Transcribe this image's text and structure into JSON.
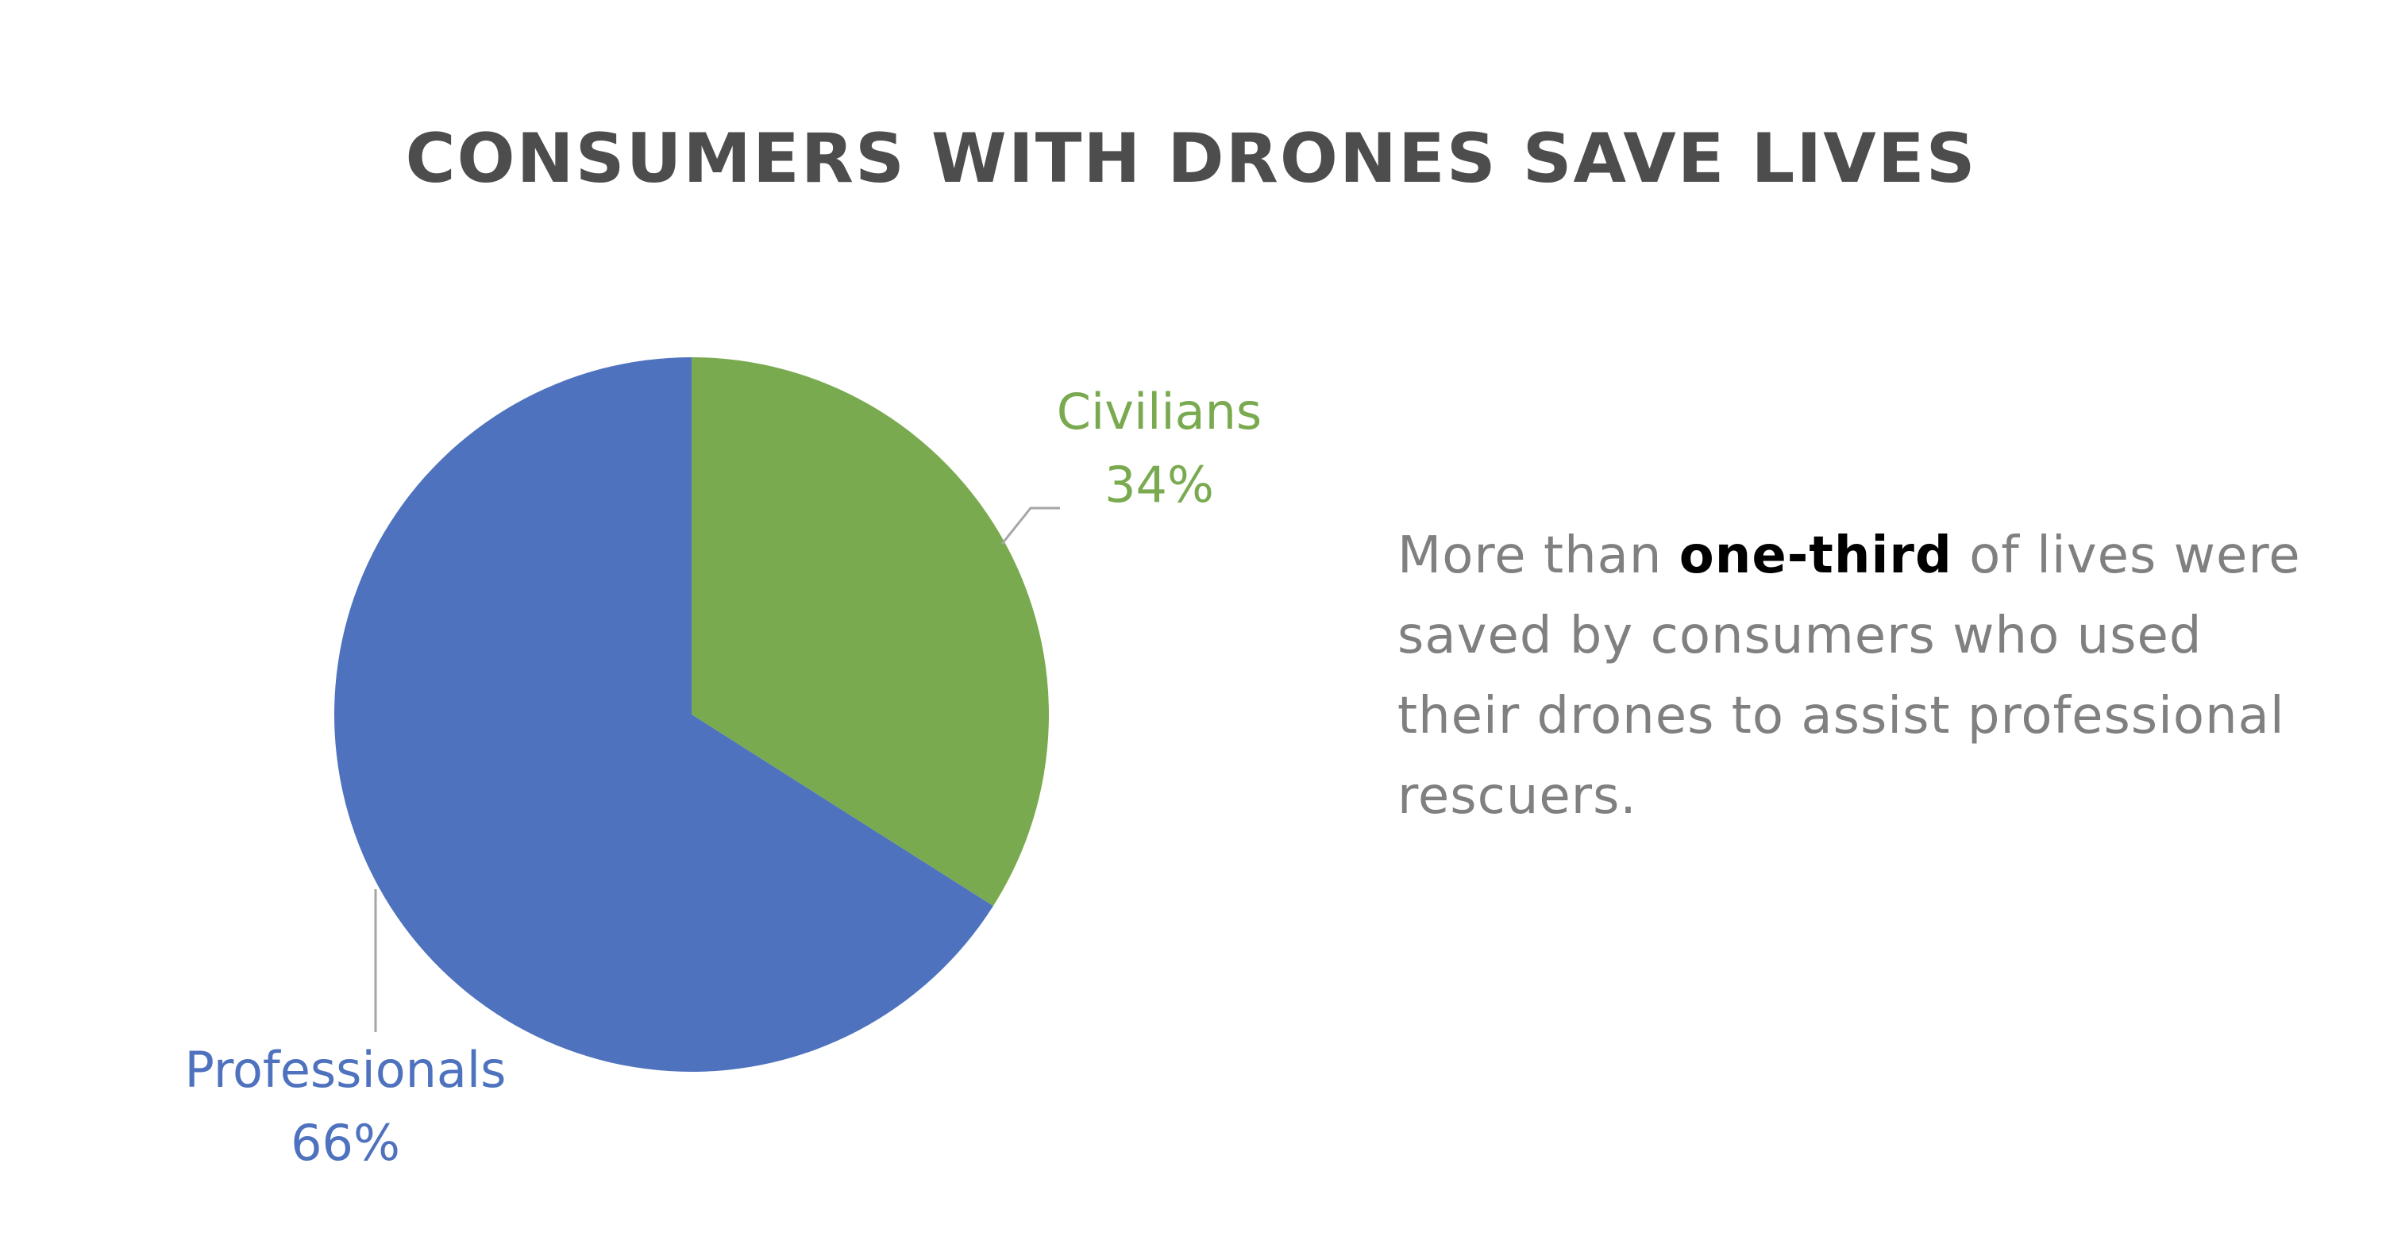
{
  "chart_data": {
    "type": "pie",
    "title": "CONSUMERS WITH DRONES SAVE LIVES",
    "slices": [
      {
        "label": "Civilians",
        "value": 34,
        "value_label": "34%",
        "color": "#7aaa50"
      },
      {
        "label": "Professionals",
        "value": 66,
        "value_label": "66%",
        "color": "#4e72be"
      }
    ],
    "start_angle_deg": 0,
    "direction": "clockwise",
    "leader_line_color": "#a6a6a6"
  },
  "caption": {
    "before": "More than ",
    "emphasis": "one-third",
    "after": " of lives were saved by consumers who used their drones to assist professional rescuers.",
    "text_color": "#808080",
    "emphasis_color": "#000000"
  }
}
